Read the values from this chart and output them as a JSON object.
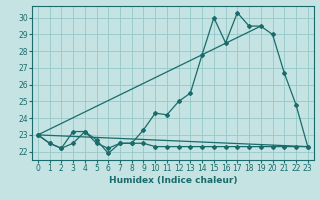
{
  "xlabel": "Humidex (Indice chaleur)",
  "background_color": "#c5e3e3",
  "grid_color": "#96c8c8",
  "line_color": "#1a6b6b",
  "xlim": [
    -0.5,
    23.5
  ],
  "ylim": [
    21.5,
    30.7
  ],
  "xticks": [
    0,
    1,
    2,
    3,
    4,
    5,
    6,
    7,
    8,
    9,
    10,
    11,
    12,
    13,
    14,
    15,
    16,
    17,
    18,
    19,
    20,
    21,
    22,
    23
  ],
  "yticks": [
    22,
    23,
    24,
    25,
    26,
    27,
    28,
    29,
    30
  ],
  "series1_x": [
    0,
    1,
    2,
    3,
    4,
    5,
    6,
    7,
    8,
    9,
    10,
    11,
    12,
    13,
    14,
    15,
    16,
    17,
    18,
    19,
    20,
    21,
    22,
    23
  ],
  "series1_y": [
    23.0,
    22.5,
    22.2,
    23.2,
    23.2,
    22.7,
    21.9,
    22.5,
    22.5,
    23.3,
    24.3,
    24.2,
    25.0,
    25.5,
    27.8,
    30.0,
    28.5,
    30.3,
    29.5,
    29.5,
    29.0,
    26.7,
    24.8,
    22.3
  ],
  "series2_x": [
    0,
    1,
    2,
    3,
    4,
    5,
    6,
    7,
    8,
    9,
    10,
    11,
    12,
    13,
    14,
    15,
    16,
    17,
    18,
    19,
    20,
    21,
    22,
    23
  ],
  "series2_y": [
    23.0,
    22.5,
    22.2,
    22.5,
    23.2,
    22.5,
    22.2,
    22.5,
    22.5,
    22.5,
    22.3,
    22.3,
    22.3,
    22.3,
    22.3,
    22.3,
    22.3,
    22.3,
    22.3,
    22.3,
    22.3,
    22.3,
    22.3,
    22.3
  ],
  "line1_x": [
    0,
    19
  ],
  "line1_y": [
    23.0,
    29.5
  ],
  "line2_x": [
    0,
    23
  ],
  "line2_y": [
    23.0,
    22.3
  ]
}
